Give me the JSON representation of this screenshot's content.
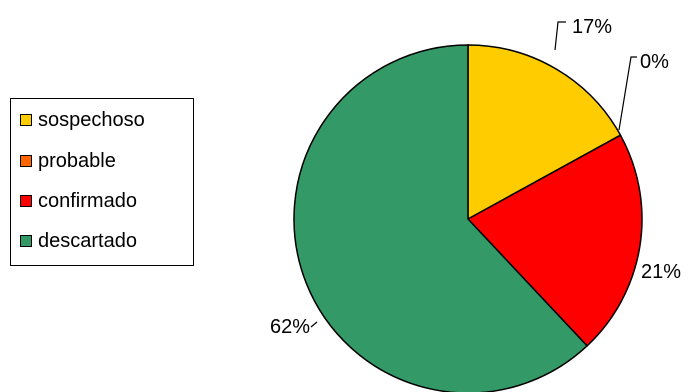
{
  "chart_data": {
    "type": "pie",
    "categories": [
      "sospechoso",
      "probable",
      "confirmado",
      "descartado"
    ],
    "values": [
      17,
      0,
      21,
      62
    ],
    "labels": [
      "17%",
      "0%",
      "21%",
      "62%"
    ],
    "colors": [
      "#ffcc00",
      "#ff6600",
      "#ff0000",
      "#339966"
    ],
    "legend_position": "left"
  }
}
